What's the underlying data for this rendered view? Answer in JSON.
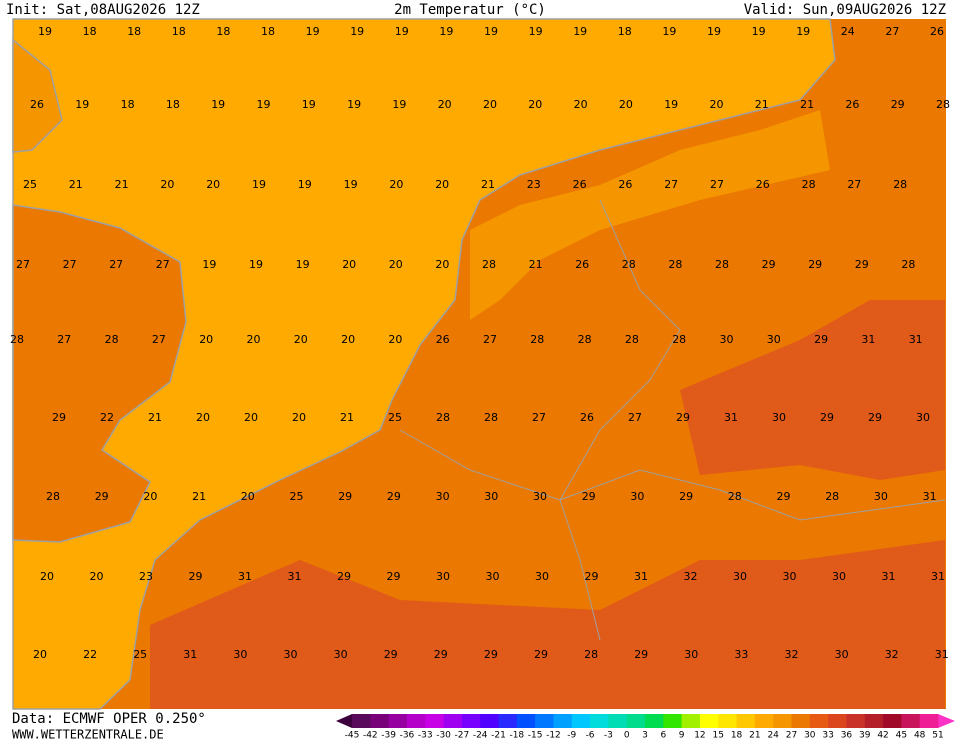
{
  "header": {
    "init": "Init: Sat,08AUG2026 12Z",
    "title": "2m Temperatur (°C)",
    "valid": "Valid: Sun,09AUG2026 12Z"
  },
  "map": {
    "temperature_rows": [
      [
        19,
        18,
        18,
        18,
        18,
        18,
        19,
        19,
        19,
        19,
        19,
        19,
        19,
        18,
        19,
        19,
        19,
        19,
        24,
        27,
        26
      ],
      [
        26,
        19,
        18,
        18,
        19,
        19,
        19,
        19,
        19,
        20,
        20,
        20,
        20,
        20,
        19,
        20,
        21,
        21,
        26,
        29,
        28
      ],
      [
        25,
        21,
        21,
        20,
        20,
        19,
        19,
        19,
        20,
        20,
        21,
        23,
        26,
        26,
        27,
        27,
        26,
        28,
        27,
        28
      ],
      [
        27,
        27,
        27,
        27,
        19,
        19,
        19,
        20,
        20,
        20,
        28,
        21,
        26,
        28,
        28,
        28,
        29,
        29,
        29,
        28
      ],
      [
        28,
        27,
        28,
        27,
        20,
        20,
        20,
        20,
        20,
        26,
        27,
        28,
        28,
        28,
        28,
        30,
        30,
        29,
        31,
        31
      ],
      [
        29,
        22,
        21,
        20,
        20,
        20,
        21,
        25,
        28,
        28,
        27,
        26,
        27,
        29,
        31,
        30,
        29,
        29,
        30
      ],
      [
        28,
        29,
        20,
        21,
        20,
        25,
        29,
        29,
        30,
        30,
        30,
        29,
        30,
        29,
        28,
        29,
        28,
        30,
        31
      ],
      [
        20,
        20,
        23,
        29,
        31,
        31,
        29,
        29,
        30,
        30,
        30,
        29,
        31,
        32,
        30,
        30,
        30,
        31,
        31
      ],
      [
        20,
        22,
        25,
        31,
        30,
        30,
        30,
        29,
        29,
        29,
        29,
        28,
        29,
        30,
        33,
        32,
        30,
        32,
        31
      ]
    ]
  },
  "colorbar": {
    "ticks": [
      -45,
      -42,
      -39,
      -36,
      -33,
      -30,
      -27,
      -24,
      -21,
      -18,
      -15,
      -12,
      -9,
      -6,
      -3,
      0,
      3,
      6,
      9,
      12,
      15,
      18,
      21,
      24,
      27,
      30,
      33,
      36,
      39,
      42,
      45,
      48,
      51
    ],
    "colors": [
      "#5a0a5a",
      "#780078",
      "#9600a0",
      "#b400c8",
      "#c800e6",
      "#a000f0",
      "#7800ff",
      "#5000ff",
      "#2828ff",
      "#0050ff",
      "#0078ff",
      "#00a0ff",
      "#00c8ff",
      "#00dcdc",
      "#00dcb4",
      "#00dc8c",
      "#00dc50",
      "#32e600",
      "#a0f000",
      "#ffff00",
      "#ffe600",
      "#ffc800",
      "#ffaa00",
      "#f59600",
      "#eb7800",
      "#e65a14",
      "#dc461e",
      "#c83228",
      "#b41e28",
      "#a00a28",
      "#c8145a",
      "#f01e96"
    ],
    "under_color": "#3c003c",
    "over_color": "#ff32c8"
  },
  "footer": {
    "data": "Data: ECMWF OPER 0.250°",
    "site": "WWW.WETTERZENTRALE.DE"
  }
}
